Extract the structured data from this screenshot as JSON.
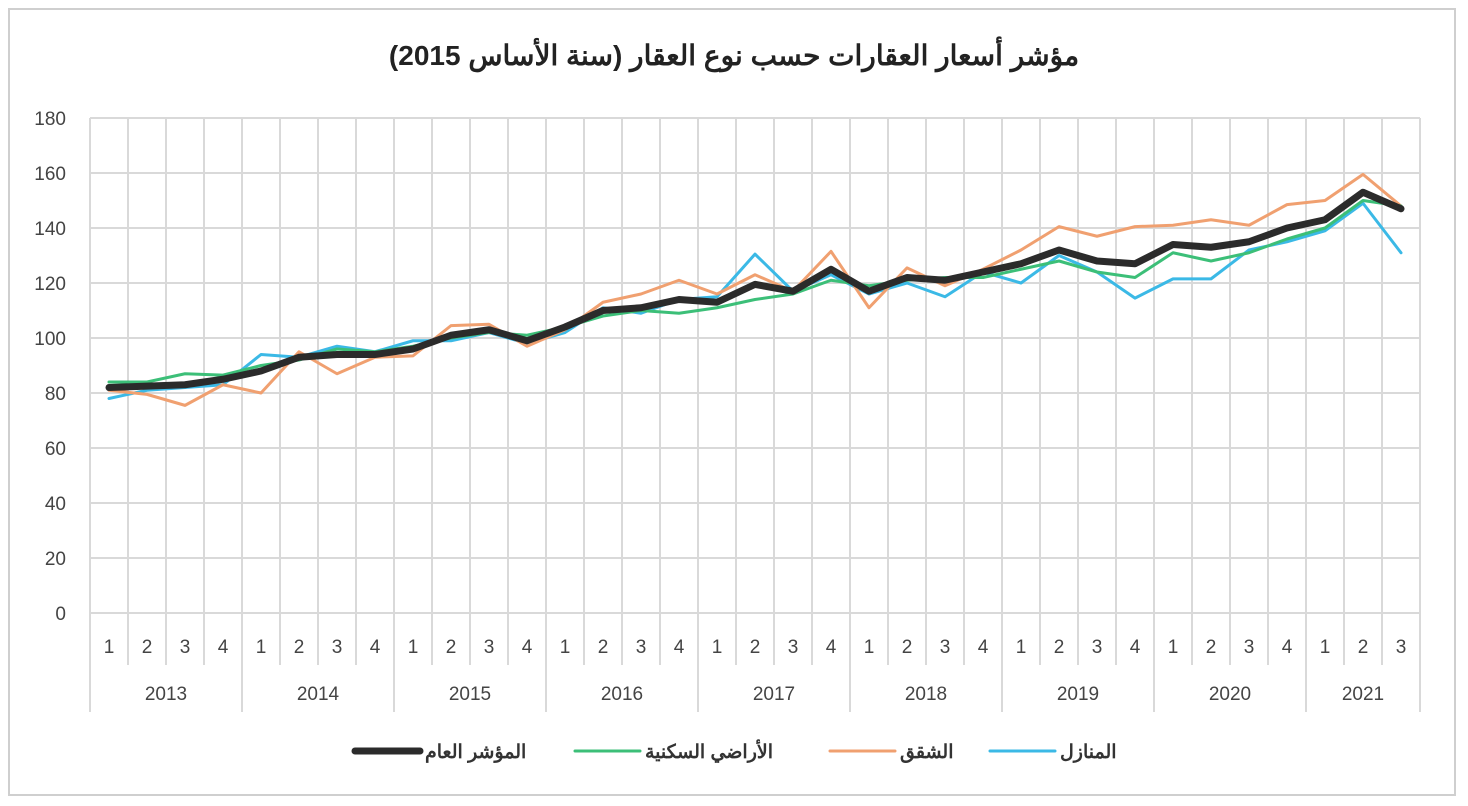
{
  "chart_data": {
    "type": "line",
    "title": "مؤشر أسعار العقارات حسب نوع العقار (سنة الأساس 2015)",
    "ylim": [
      0,
      180
    ],
    "yticks": [
      0,
      20,
      40,
      60,
      80,
      100,
      120,
      140,
      160,
      180
    ],
    "grid": true,
    "legend_position": "bottom",
    "years": [
      "2013",
      "2014",
      "2015",
      "2016",
      "2017",
      "2018",
      "2019",
      "2020",
      "2021"
    ],
    "quarters_per_year": [
      4,
      4,
      4,
      4,
      4,
      4,
      4,
      4,
      3
    ],
    "quarter_labels": [
      "1",
      "2",
      "3",
      "4"
    ],
    "series": [
      {
        "name": "المنازل",
        "color": "#3bb9e6",
        "width": 3,
        "values": [
          78,
          81,
          82,
          83,
          94,
          93,
          97,
          95,
          99,
          99,
          102,
          98,
          102,
          111,
          109,
          114,
          115,
          130.5,
          117,
          123,
          116,
          120,
          115,
          124,
          120,
          130,
          124,
          114.5,
          121.5,
          121.5,
          132,
          135,
          139,
          149,
          131
        ]
      },
      {
        "name": "الشقق",
        "color": "#f0a070",
        "width": 3,
        "values": [
          81,
          79.5,
          75.5,
          83,
          80,
          95,
          87,
          93,
          93.5,
          104.5,
          105,
          97,
          103,
          113,
          116,
          121,
          116,
          123,
          117,
          131.5,
          111,
          125.5,
          119,
          125,
          132,
          140.5,
          137,
          140.5,
          141,
          143,
          141,
          148.5,
          150,
          159.5,
          148
        ]
      },
      {
        "name": "الأراضي السكنية",
        "color": "#3cbf78",
        "width": 3,
        "values": [
          84,
          84,
          87,
          86.5,
          90,
          92,
          96,
          95,
          97,
          100,
          102,
          101,
          104,
          108,
          110,
          109,
          111,
          114,
          116,
          121,
          119,
          121,
          122,
          122,
          125,
          128,
          124,
          122,
          131,
          128,
          131,
          136,
          140,
          150,
          148
        ]
      },
      {
        "name": "المؤشر العام",
        "color": "#2b2b2b",
        "width": 7,
        "values": [
          82,
          82.5,
          83,
          85,
          88,
          93,
          94,
          94,
          96,
          101,
          103,
          99,
          104,
          110,
          111,
          114,
          113,
          119.5,
          117,
          125,
          117,
          122,
          121,
          124,
          127,
          132,
          128,
          127,
          134,
          133,
          135,
          140,
          143,
          153,
          147
        ]
      }
    ],
    "legend_order": [
      "المؤشر العام",
      "الأراضي السكنية",
      "الشقق",
      "المنازل"
    ]
  }
}
